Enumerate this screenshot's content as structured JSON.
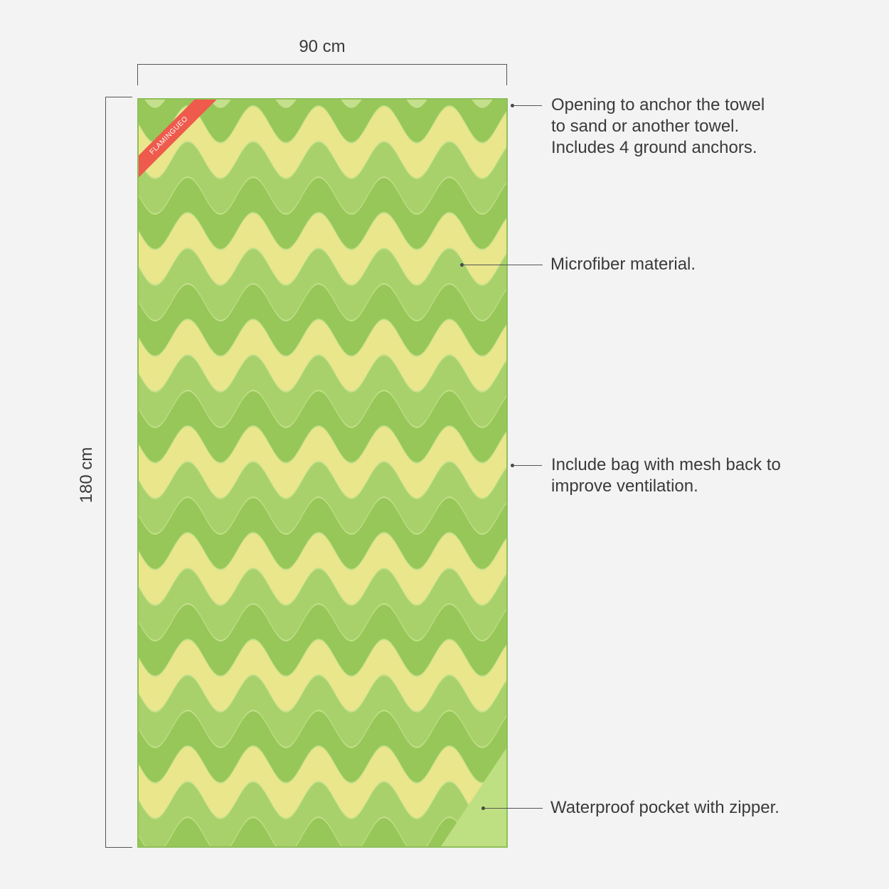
{
  "dimensions": {
    "width": "90 cm",
    "height": "180 cm"
  },
  "towel": {
    "brand": "FLAMINGUEO",
    "colors": {
      "base": "#c4e08c",
      "dark_wave": "#92c452",
      "yellow_wave": "#ece68c",
      "pocket": "#bfe082",
      "brand_ribbon": "#ee5a4c"
    }
  },
  "annotations": [
    {
      "lines": [
        "Opening to anchor the towel",
        "to sand or another towel.",
        "Includes 4 ground anchors."
      ]
    },
    {
      "lines": [
        "Microfiber material."
      ]
    },
    {
      "lines": [
        "Include bag with mesh back to",
        "improve ventilation."
      ]
    },
    {
      "lines": [
        "Waterproof pocket with zipper."
      ]
    }
  ]
}
